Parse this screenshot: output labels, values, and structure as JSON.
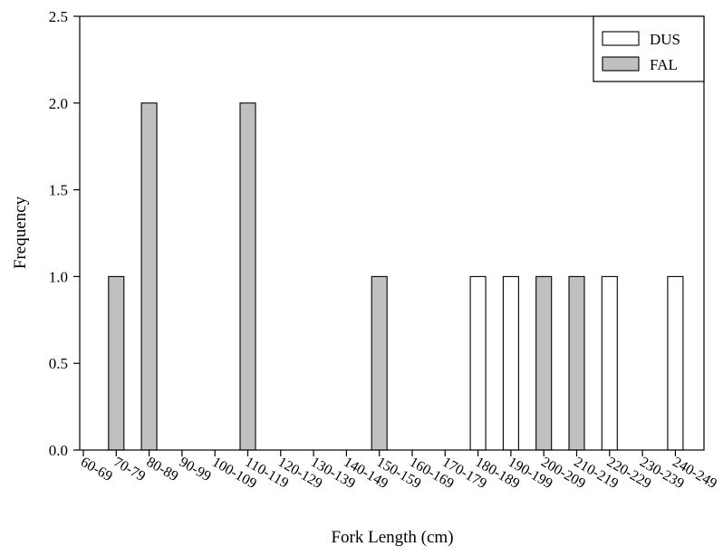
{
  "chart_data": {
    "type": "bar",
    "title": "",
    "xlabel": "Fork Length (cm)",
    "ylabel": "Frequency",
    "ylim": [
      0,
      2.5
    ],
    "yticks": [
      0.0,
      0.5,
      1.0,
      1.5,
      2.0,
      2.5
    ],
    "ytick_labels": [
      "0.0",
      "0.5",
      "1.0",
      "1.5",
      "2.0",
      "2.5"
    ],
    "grid": false,
    "legend_position": "top-right",
    "categories": [
      "60-69",
      "70-79",
      "80-89",
      "90-99",
      "100-109",
      "110-119",
      "120-129",
      "130-139",
      "140-149",
      "150-159",
      "160-169",
      "170-179",
      "180-189",
      "190-199",
      "200-209",
      "210-219",
      "220-229",
      "230-239",
      "240-249"
    ],
    "series": [
      {
        "name": "DUS",
        "color": "#ffffff",
        "values": [
          0,
          0,
          0,
          0,
          0,
          0,
          0,
          0,
          0,
          0,
          0,
          0,
          1,
          1,
          0,
          0,
          1,
          0,
          1
        ]
      },
      {
        "name": "FAL",
        "color": "#c0c0c0",
        "values": [
          0,
          1,
          2,
          0,
          0,
          2,
          0,
          0,
          0,
          1,
          0,
          0,
          0,
          0,
          1,
          1,
          0,
          0,
          0
        ]
      }
    ]
  }
}
